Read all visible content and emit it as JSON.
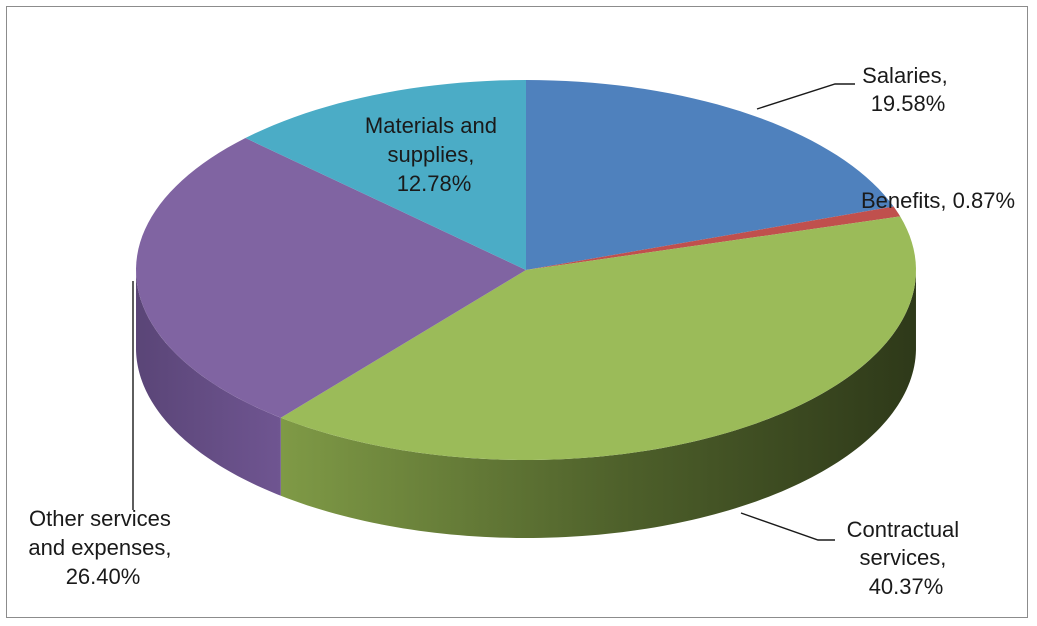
{
  "chart_data": {
    "type": "pie",
    "title": "",
    "categories": [
      "Salaries",
      "Benefits",
      "Contractual services",
      "Other services and expenses",
      "Materials and supplies"
    ],
    "values": [
      19.58,
      0.87,
      40.37,
      26.4,
      12.78
    ],
    "value_unit": "%",
    "data_labels": [
      [
        "Salaries,",
        "19.58%"
      ],
      [
        "Benefits, 0.87%"
      ],
      [
        "Contractual",
        "services,",
        "40.37%"
      ],
      [
        "Other services",
        "and expenses,",
        "26.40%"
      ],
      [
        "Materials and",
        "supplies,",
        "12.78%"
      ]
    ],
    "colors": [
      "#4f81bd",
      "#c0504d",
      "#9bbb59",
      "#8064a2",
      "#4bacc6"
    ],
    "side_colors_dark": [
      "#2c4a72",
      "#7a2e2c",
      "#374720",
      "#4c3a62",
      "#2b6e80"
    ],
    "start_angle_deg": 90,
    "direction": "clockwise",
    "style": "3d"
  }
}
